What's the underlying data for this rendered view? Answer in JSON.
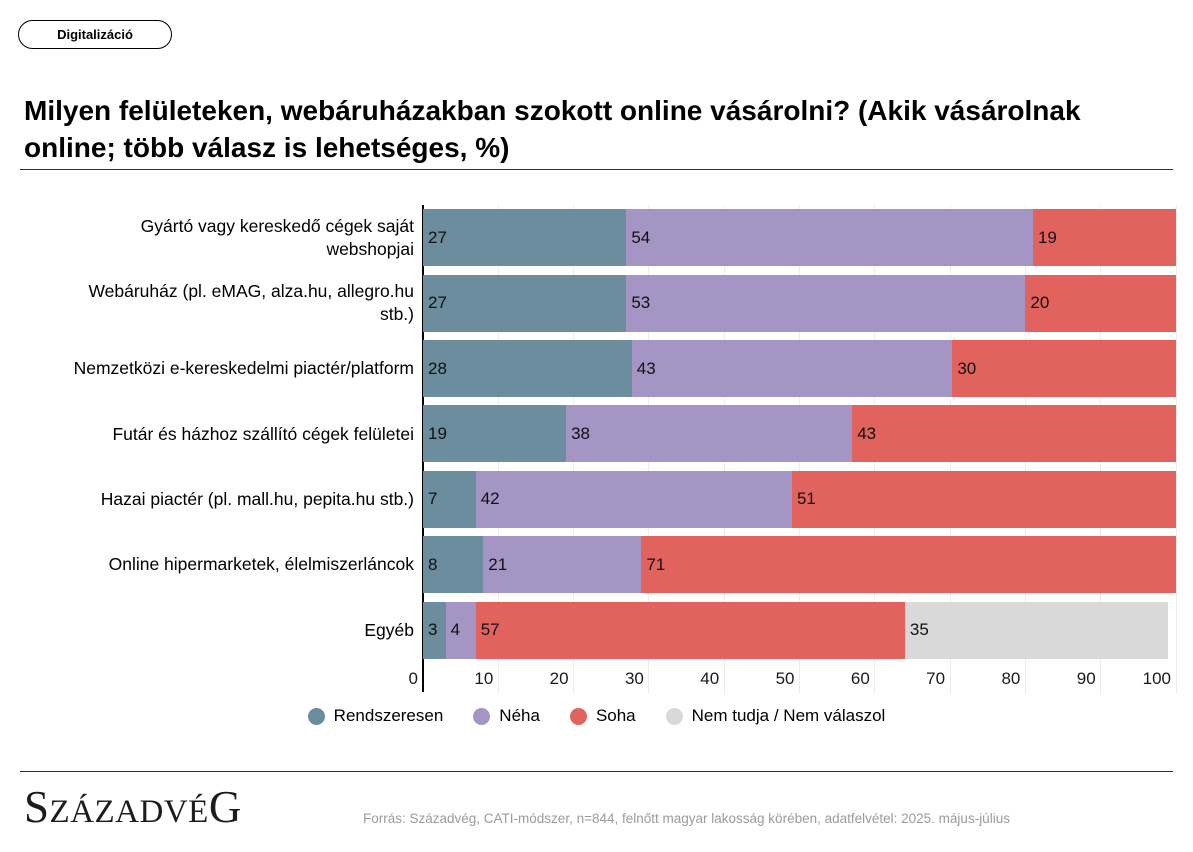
{
  "badge": {
    "label": "Digitalizáció"
  },
  "title": {
    "text": "Milyen felületeken, webáruházakban szokott online vásárolni? (Akik vásárolnak online; több válasz is lehetséges, %)"
  },
  "chart_data": {
    "type": "bar",
    "orientation": "horizontal",
    "stacked": true,
    "unit": "%",
    "categories": [
      "Gyártó vagy kereskedő cégek saját webshopjai",
      "Webáruház (pl. eMAG, alza.hu, allegro.hu stb.)",
      "Nemzetközi e-kereskedelmi piactér/platform",
      "Futár és házhoz szállító cégek felületei",
      "Hazai piactér (pl. mall.hu, pepita.hu stb.)",
      "Online hipermarketek, élelmiszerláncok",
      "Egyéb"
    ],
    "categories_wrapped": [
      [
        "Gyártó vagy kereskedő cégek saját",
        "webshopjai"
      ],
      [
        "Webáruház (pl. eMAG, alza.hu, allegro.hu",
        "stb.)"
      ],
      [
        "Nemzetközi e-kereskedelmi piactér/platform"
      ],
      [
        "Futár és házhoz szállító cégek felületei"
      ],
      [
        "Hazai piactér (pl. mall.hu, pepita.hu stb.)"
      ],
      [
        "Online hipermarketek, élelmiszerláncok"
      ],
      [
        "Egyéb"
      ]
    ],
    "series": [
      {
        "name": "Rendszeresen",
        "color": "#6b8d9e",
        "values": [
          27,
          27,
          28,
          19,
          7,
          8,
          3
        ]
      },
      {
        "name": "Néha",
        "color": "#a495c4",
        "values": [
          54,
          53,
          43,
          38,
          42,
          21,
          4
        ]
      },
      {
        "name": "Soha",
        "color": "#e2635e",
        "values": [
          19,
          20,
          30,
          43,
          51,
          71,
          57
        ]
      },
      {
        "name": "Nem tudja / Nem válaszol",
        "color": "#d9d9d9",
        "values": [
          null,
          null,
          null,
          null,
          null,
          null,
          35
        ]
      }
    ],
    "xlim": [
      0,
      100
    ],
    "xticks": [
      0,
      10,
      20,
      30,
      40,
      50,
      60,
      70,
      80,
      90,
      100
    ],
    "grid": true,
    "legend_position": "bottom"
  },
  "footer": {
    "logo_parts": {
      "first": "S",
      "middle": "ZÁZADVÉ",
      "last": "G"
    },
    "source": "Forrás: Századvég, CATI-módszer, n=844, felnőtt magyar lakosság körében, adatfelvétel: 2025. május-július"
  }
}
